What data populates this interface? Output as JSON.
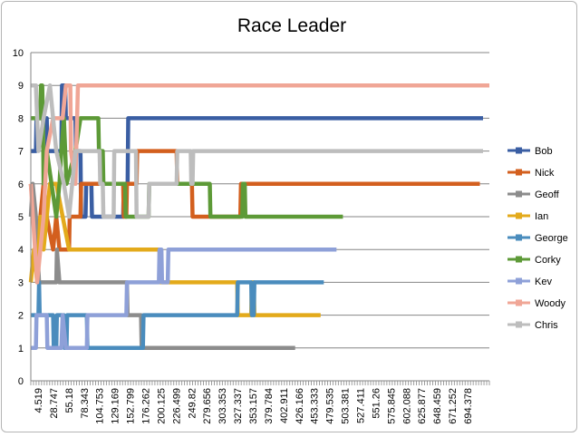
{
  "chart_data": {
    "type": "line",
    "title": "Race Leader",
    "xlabel": "",
    "ylabel": "",
    "ylim": [
      0,
      10
    ],
    "yticks": [
      0,
      1,
      2,
      3,
      4,
      5,
      6,
      7,
      8,
      9,
      10
    ],
    "xlim": [
      0,
      720
    ],
    "xtick_labels": [
      "4.519",
      "28.747",
      "55.18",
      "78.343",
      "104.753",
      "129.169",
      "152.799",
      "176.262",
      "200.125",
      "226.499",
      "249.82",
      "279.656",
      "303.353",
      "327.337",
      "353.157",
      "379.784",
      "402.911",
      "426.166",
      "453.333",
      "479.535",
      "503.381",
      "527.411",
      "551.26",
      "575.845",
      "602.088",
      "625.877",
      "648.459",
      "671.252",
      "694.378"
    ],
    "grid": true,
    "legend_position": "right",
    "series": [
      {
        "name": "Bob",
        "color": "#3a5ea3",
        "points": [
          [
            0,
            7
          ],
          [
            8,
            7
          ],
          [
            9,
            8
          ],
          [
            25,
            8
          ],
          [
            26,
            7
          ],
          [
            48,
            7
          ],
          [
            49,
            9
          ],
          [
            54,
            9
          ],
          [
            55,
            8
          ],
          [
            70,
            8
          ],
          [
            71,
            7
          ],
          [
            78,
            7
          ],
          [
            79,
            5
          ],
          [
            86,
            5
          ],
          [
            87,
            6
          ],
          [
            95,
            6
          ],
          [
            96,
            5
          ],
          [
            145,
            5
          ],
          [
            146,
            6
          ],
          [
            152,
            6
          ],
          [
            153,
            8
          ],
          [
            710,
            8
          ]
        ]
      },
      {
        "name": "Nick",
        "color": "#d35f1e",
        "points": [
          [
            0,
            6
          ],
          [
            5,
            5
          ],
          [
            10,
            4
          ],
          [
            20,
            6
          ],
          [
            25,
            5
          ],
          [
            35,
            4
          ],
          [
            40,
            5
          ],
          [
            45,
            4
          ],
          [
            60,
            4
          ],
          [
            61,
            5
          ],
          [
            78,
            5
          ],
          [
            79,
            6
          ],
          [
            145,
            6
          ],
          [
            146,
            5
          ],
          [
            150,
            5
          ],
          [
            151,
            6
          ],
          [
            166,
            6
          ],
          [
            167,
            7
          ],
          [
            229,
            7
          ],
          [
            230,
            6
          ],
          [
            253,
            6
          ],
          [
            254,
            5
          ],
          [
            329,
            5
          ],
          [
            330,
            6
          ],
          [
            705,
            6
          ]
        ]
      },
      {
        "name": "Geoff",
        "color": "#8c8c8c",
        "points": [
          [
            0,
            5
          ],
          [
            3,
            6
          ],
          [
            8,
            5
          ],
          [
            13,
            3
          ],
          [
            40,
            3
          ],
          [
            41,
            4
          ],
          [
            45,
            3
          ],
          [
            151,
            3
          ],
          [
            152,
            2
          ],
          [
            173,
            2
          ],
          [
            174,
            1
          ],
          [
            415,
            1
          ]
        ]
      },
      {
        "name": "Ian",
        "color": "#e3aa1b",
        "points": [
          [
            0,
            3
          ],
          [
            5,
            4
          ],
          [
            10,
            3
          ],
          [
            15,
            5
          ],
          [
            20,
            4
          ],
          [
            30,
            6
          ],
          [
            40,
            6
          ],
          [
            60,
            4
          ],
          [
            202,
            4
          ],
          [
            203,
            3
          ],
          [
            324,
            3
          ],
          [
            325,
            2
          ],
          [
            346,
            2
          ],
          [
            347,
            3
          ],
          [
            350,
            3
          ],
          [
            351,
            2
          ],
          [
            455,
            2
          ]
        ]
      },
      {
        "name": "George",
        "color": "#4a8cbd",
        "points": [
          [
            0,
            2
          ],
          [
            12,
            2
          ],
          [
            13,
            3
          ],
          [
            14,
            2
          ],
          [
            35,
            2
          ],
          [
            36,
            1
          ],
          [
            40,
            1
          ],
          [
            41,
            2
          ],
          [
            52,
            2
          ],
          [
            53,
            1
          ],
          [
            56,
            1
          ],
          [
            57,
            2
          ],
          [
            88,
            2
          ],
          [
            89,
            1
          ],
          [
            176,
            1
          ],
          [
            177,
            2
          ],
          [
            324,
            2
          ],
          [
            325,
            3
          ],
          [
            346,
            3
          ],
          [
            347,
            2
          ],
          [
            350,
            2
          ],
          [
            351,
            3
          ],
          [
            460,
            3
          ]
        ]
      },
      {
        "name": "Corky",
        "color": "#5d9a37",
        "points": [
          [
            0,
            8
          ],
          [
            15,
            8
          ],
          [
            16,
            9
          ],
          [
            18,
            9
          ],
          [
            19,
            8
          ],
          [
            20,
            6
          ],
          [
            25,
            7
          ],
          [
            40,
            5
          ],
          [
            45,
            6
          ],
          [
            48,
            7
          ],
          [
            52,
            8
          ],
          [
            56,
            6
          ],
          [
            70,
            7
          ],
          [
            78,
            8
          ],
          [
            106,
            8
          ],
          [
            107,
            7
          ],
          [
            113,
            7
          ],
          [
            114,
            6
          ],
          [
            148,
            6
          ],
          [
            149,
            5
          ],
          [
            185,
            5
          ],
          [
            186,
            6
          ],
          [
            281,
            6
          ],
          [
            282,
            5
          ],
          [
            332,
            5
          ],
          [
            333,
            6
          ],
          [
            336,
            6
          ],
          [
            337,
            5
          ],
          [
            490,
            5
          ]
        ]
      },
      {
        "name": "Kev",
        "color": "#8ea0d8",
        "points": [
          [
            0,
            1
          ],
          [
            8,
            1
          ],
          [
            9,
            2
          ],
          [
            25,
            2
          ],
          [
            26,
            1
          ],
          [
            48,
            1
          ],
          [
            50,
            2
          ],
          [
            55,
            1
          ],
          [
            88,
            1
          ],
          [
            89,
            2
          ],
          [
            150,
            2
          ],
          [
            151,
            3
          ],
          [
            201,
            3
          ],
          [
            202,
            4
          ],
          [
            205,
            4
          ],
          [
            206,
            3
          ],
          [
            215,
            3
          ],
          [
            216,
            4
          ],
          [
            480,
            4
          ]
        ]
      },
      {
        "name": "Woody",
        "color": "#f0a696",
        "points": [
          [
            0,
            6
          ],
          [
            10,
            3
          ],
          [
            20,
            5
          ],
          [
            25,
            7
          ],
          [
            35,
            8
          ],
          [
            50,
            8
          ],
          [
            55,
            9
          ],
          [
            62,
            9
          ],
          [
            63,
            7
          ],
          [
            70,
            6
          ],
          [
            74,
            9
          ],
          [
            720,
            9
          ]
        ]
      },
      {
        "name": "Chris",
        "color": "#bdbdbd",
        "points": [
          [
            0,
            9
          ],
          [
            8,
            9
          ],
          [
            12,
            7
          ],
          [
            20,
            8
          ],
          [
            30,
            9
          ],
          [
            40,
            7
          ],
          [
            52,
            6
          ],
          [
            60,
            5
          ],
          [
            70,
            7
          ],
          [
            108,
            7
          ],
          [
            109,
            6
          ],
          [
            113,
            6
          ],
          [
            114,
            5
          ],
          [
            130,
            5
          ],
          [
            131,
            7
          ],
          [
            165,
            7
          ],
          [
            166,
            5
          ],
          [
            185,
            5
          ],
          [
            186,
            6
          ],
          [
            229,
            6
          ],
          [
            230,
            7
          ],
          [
            251,
            7
          ],
          [
            252,
            6
          ],
          [
            254,
            6
          ],
          [
            255,
            7
          ],
          [
            710,
            7
          ]
        ]
      }
    ]
  }
}
